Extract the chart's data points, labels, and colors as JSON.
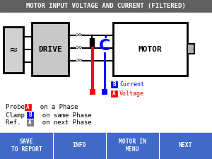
{
  "title": "MOTOR INPUT VOLTAGE AND CURRENT (FILTERED)",
  "title_bg": "#606060",
  "title_color": "#ffffff",
  "bg_color": "#ffffff",
  "bottom_bar_color": "#4169c8",
  "bottom_bar_text_color": "#ffffff",
  "bottom_buttons": [
    "SAVE\nTO REPORT",
    "INFO",
    "MOTOR IN\nMENU",
    "NEXT"
  ],
  "probe_label_color": "#ff0000",
  "clamp_label_color": "#0000ff",
  "ref_label_color": "#808080",
  "probe_text": "on a Phase",
  "clamp_text": "on same Phase",
  "ref_text": "on next Phase",
  "current_label_color": "#0000ff",
  "voltage_label_color": "#ff0000"
}
